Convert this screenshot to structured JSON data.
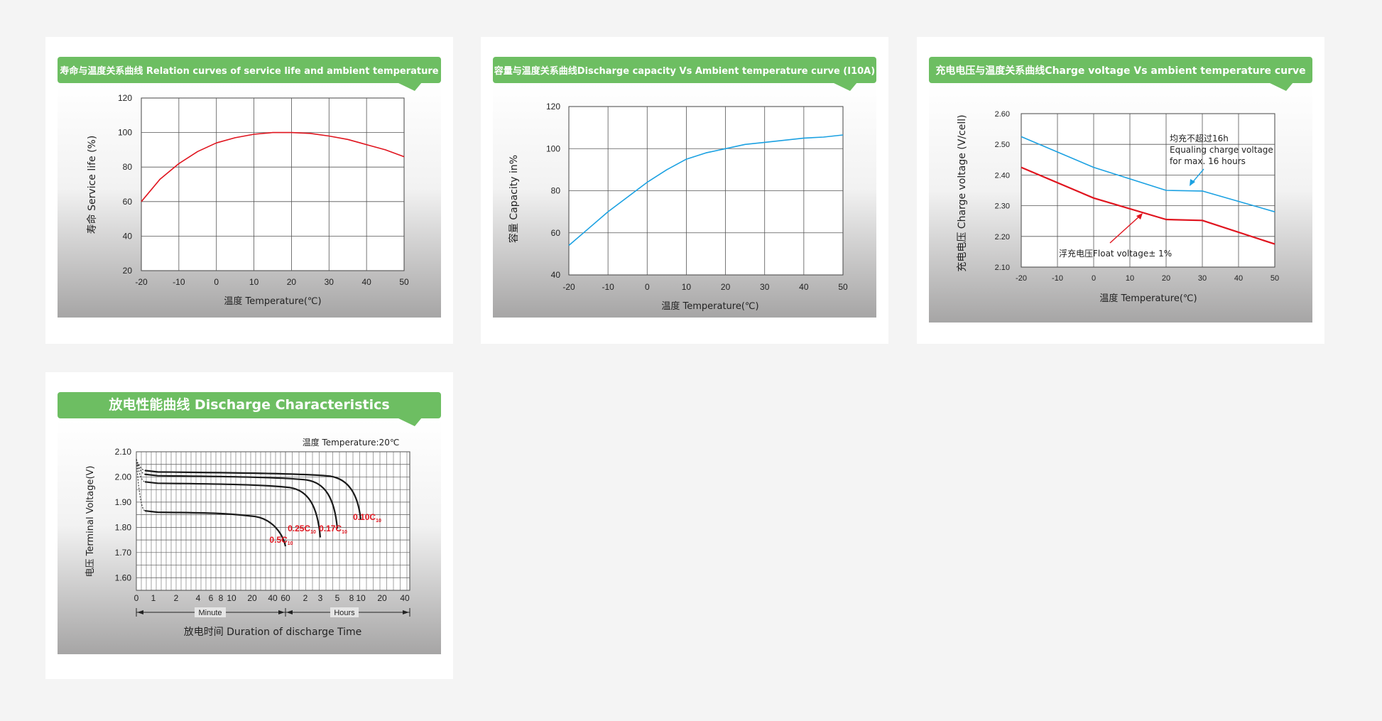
{
  "charts": [
    {
      "id": "c1",
      "title": "寿命与温度关系曲线 Relation curves of service life and ambient temperature",
      "chart_data": {
        "type": "line",
        "xlabel": "温度 Temperature(℃)",
        "ylabel": "寿命 Service life (%)",
        "xlim": [
          -20,
          50
        ],
        "ylim": [
          20,
          120
        ],
        "x_ticks": [
          -20,
          -10,
          0,
          10,
          20,
          30,
          40,
          50
        ],
        "y_ticks": [
          20,
          40,
          60,
          80,
          100,
          120
        ],
        "series": [
          {
            "color": "#e0141e",
            "x": [
              -20,
              -15,
              -10,
              -5,
              0,
              5,
              10,
              15,
              20,
              25,
              30,
              35,
              40,
              45,
              50
            ],
            "y": [
              60,
              73,
              82,
              89,
              94,
              97,
              99,
              100,
              100,
              99.5,
              98,
              96,
              93,
              90,
              86
            ]
          }
        ],
        "grid": true
      }
    },
    {
      "id": "c2",
      "title": "容量与温度关系曲线Discharge capacity Vs Ambient temperature curve (I10A)",
      "chart_data": {
        "type": "line",
        "xlabel": "温度 Temperature(℃)",
        "ylabel": "容量 Capacity in%",
        "xlim": [
          -20,
          50
        ],
        "ylim": [
          40,
          120
        ],
        "x_ticks": [
          -20,
          -10,
          0,
          10,
          20,
          30,
          40,
          50
        ],
        "y_ticks": [
          40,
          60,
          80,
          100,
          120
        ],
        "series": [
          {
            "color": "#1ba1e2",
            "x": [
              -20,
              -15,
              -10,
              -5,
              0,
              5,
              10,
              15,
              20,
              25,
              30,
              35,
              40,
              45,
              50
            ],
            "y": [
              54,
              62,
              70,
              77,
              84,
              90,
              95,
              98,
              100,
              102,
              103,
              104,
              105,
              105.5,
              106.5
            ]
          }
        ],
        "grid": true
      }
    },
    {
      "id": "c3",
      "title": "充电电压与温度关系曲线Charge voltage Vs ambient temperature curve",
      "chart_data": {
        "type": "line",
        "xlabel": "温度 Temperature(℃)",
        "ylabel": "充电电压 Charge voltage (V/cell)",
        "xlim": [
          -20,
          50
        ],
        "ylim": [
          2.1,
          2.6
        ],
        "x_ticks": [
          -20,
          -10,
          0,
          10,
          20,
          30,
          40,
          50
        ],
        "y_ticks": [
          "2.10",
          "2.20",
          "2.30",
          "2.40",
          "2.50",
          "2.60"
        ],
        "series": [
          {
            "color": "#1ba1e2",
            "x": [
              -20,
              0,
              20,
              30,
              50
            ],
            "y": [
              2.525,
              2.425,
              2.35,
              2.348,
              2.28
            ]
          },
          {
            "color": "#e0141e",
            "x": [
              -20,
              0,
              20,
              30,
              50
            ],
            "y": [
              2.425,
              2.325,
              2.255,
              2.252,
              2.175
            ]
          }
        ],
        "annotations": [
          {
            "lines": [
              "均充不超过16h",
              "Equaling charge voltage",
              "for max. 16 hours"
            ]
          },
          {
            "lines": [
              "浮充电压Float voltage± 1%"
            ]
          }
        ],
        "grid": true
      }
    },
    {
      "id": "c4",
      "title": "放电性能曲线 Discharge Characteristics",
      "chart_data": {
        "type": "line",
        "subtitle": "温度  Temperature:20℃",
        "xlabel": "放电时间  Duration of discharge Time",
        "ylabel": "电压 Terminal Voltage(V)",
        "ylim": [
          1.55,
          2.1
        ],
        "y_ticks": [
          "1.60",
          "1.70",
          "1.80",
          "1.90",
          "2.00",
          "2.10"
        ],
        "x_ticks_minute": [
          "0",
          "1",
          "2",
          "4",
          "6",
          "8",
          "10",
          "20",
          "40",
          "60"
        ],
        "x_ticks_hours": [
          "2",
          "3",
          "5",
          "8",
          "10",
          "20",
          "40"
        ],
        "x_ranges": [
          "Minute",
          "Hours"
        ],
        "series": [
          {
            "name": "0.5C10",
            "base": "0.5C",
            "sub": "10",
            "end_hours": 1.0,
            "plateau": 1.86
          },
          {
            "name": "0.25C10",
            "base": "0.25C",
            "sub": "10",
            "end_hours": 3.0,
            "plateau": 1.975
          },
          {
            "name": "0.17C10",
            "base": "0.17C",
            "sub": "10",
            "end_hours": 5.0,
            "plateau": 2.005
          },
          {
            "name": "0.10C10",
            "base": "0.10C",
            "sub": "10",
            "end_hours": 10.0,
            "plateau": 2.02
          }
        ],
        "grid": true
      }
    }
  ]
}
